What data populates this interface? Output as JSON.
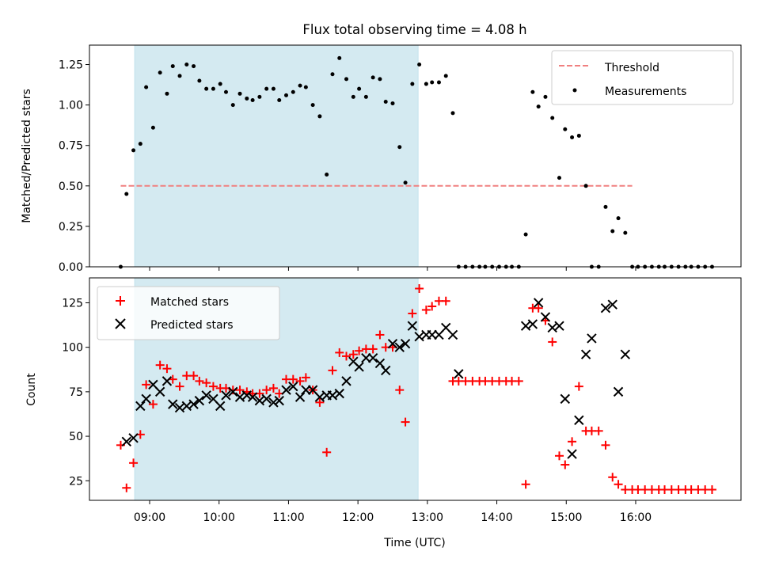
{
  "title": "Flux total observing time = 4.08 h",
  "colors": {
    "observing_span": "#d4eaf1",
    "threshold": "#f08080",
    "measurements": "#000000",
    "matched": "#ff0000",
    "predicted": "#000000"
  },
  "chart_data": [
    {
      "type": "scatter",
      "ylabel": "Matched/Predicted stars",
      "ylim": [
        0,
        1.37
      ],
      "yticks": [
        "0.00",
        "0.25",
        "0.50",
        "0.75",
        "1.00",
        "1.25"
      ],
      "ytick_values": [
        0,
        0.25,
        0.5,
        0.75,
        1.0,
        1.25
      ],
      "legend_position": "top-right",
      "observing_span": [
        "08:47",
        "12:52"
      ],
      "threshold": {
        "name": "Threshold",
        "y": 0.5,
        "x_range": [
          "08:35",
          "15:57"
        ]
      },
      "series": [
        {
          "name": "Measurements",
          "marker": "dot",
          "points": [
            [
              "08:35",
              0.0
            ],
            [
              "08:40",
              0.45
            ],
            [
              "08:46",
              0.72
            ],
            [
              "08:52",
              0.76
            ],
            [
              "08:57",
              1.11
            ],
            [
              "09:03",
              0.86
            ],
            [
              "09:09",
              1.2
            ],
            [
              "09:15",
              1.07
            ],
            [
              "09:20",
              1.24
            ],
            [
              "09:26",
              1.18
            ],
            [
              "09:32",
              1.25
            ],
            [
              "09:38",
              1.24
            ],
            [
              "09:43",
              1.15
            ],
            [
              "09:49",
              1.1
            ],
            [
              "09:55",
              1.1
            ],
            [
              "10:01",
              1.13
            ],
            [
              "10:06",
              1.08
            ],
            [
              "10:12",
              1.0
            ],
            [
              "10:18",
              1.07
            ],
            [
              "10:24",
              1.04
            ],
            [
              "10:29",
              1.03
            ],
            [
              "10:35",
              1.05
            ],
            [
              "10:41",
              1.1
            ],
            [
              "10:47",
              1.1
            ],
            [
              "10:52",
              1.03
            ],
            [
              "10:58",
              1.06
            ],
            [
              "11:04",
              1.08
            ],
            [
              "11:10",
              1.12
            ],
            [
              "11:15",
              1.11
            ],
            [
              "11:21",
              1.0
            ],
            [
              "11:27",
              0.93
            ],
            [
              "11:33",
              0.57
            ],
            [
              "11:38",
              1.19
            ],
            [
              "11:44",
              1.29
            ],
            [
              "11:50",
              1.16
            ],
            [
              "11:56",
              1.05
            ],
            [
              "12:01",
              1.1
            ],
            [
              "12:07",
              1.05
            ],
            [
              "12:13",
              1.17
            ],
            [
              "12:19",
              1.16
            ],
            [
              "12:24",
              1.02
            ],
            [
              "12:30",
              1.01
            ],
            [
              "12:36",
              0.74
            ],
            [
              "12:41",
              0.52
            ],
            [
              "12:47",
              1.13
            ],
            [
              "12:53",
              1.25
            ],
            [
              "12:59",
              1.13
            ],
            [
              "13:04",
              1.14
            ],
            [
              "13:10",
              1.14
            ],
            [
              "13:16",
              1.18
            ],
            [
              "13:22",
              0.95
            ],
            [
              "13:27",
              0.0
            ],
            [
              "13:33",
              0.0
            ],
            [
              "13:39",
              0.0
            ],
            [
              "13:45",
              0.0
            ],
            [
              "13:50",
              0.0
            ],
            [
              "13:56",
              0.0
            ],
            [
              "14:02",
              0.0
            ],
            [
              "14:08",
              0.0
            ],
            [
              "14:13",
              0.0
            ],
            [
              "14:19",
              0.0
            ],
            [
              "14:25",
              0.2
            ],
            [
              "14:31",
              1.08
            ],
            [
              "14:36",
              0.99
            ],
            [
              "14:42",
              1.05
            ],
            [
              "14:48",
              0.92
            ],
            [
              "14:54",
              0.55
            ],
            [
              "14:59",
              0.85
            ],
            [
              "15:05",
              0.8
            ],
            [
              "15:11",
              0.81
            ],
            [
              "15:17",
              0.5
            ],
            [
              "15:22",
              0.0
            ],
            [
              "15:28",
              0.0
            ],
            [
              "15:34",
              0.37
            ],
            [
              "15:40",
              0.22
            ],
            [
              "15:45",
              0.3
            ],
            [
              "15:51",
              0.21
            ],
            [
              "15:57",
              0.0
            ],
            [
              "16:02",
              0.0
            ],
            [
              "16:08",
              0.0
            ],
            [
              "16:14",
              0.0
            ],
            [
              "16:20",
              0.0
            ],
            [
              "16:25",
              0.0
            ],
            [
              "16:31",
              0.0
            ],
            [
              "16:37",
              0.0
            ],
            [
              "16:43",
              0.0
            ],
            [
              "16:48",
              0.0
            ],
            [
              "16:54",
              0.0
            ],
            [
              "17:00",
              0.0
            ],
            [
              "17:06",
              0.0
            ]
          ]
        }
      ]
    },
    {
      "type": "scatter",
      "xlabel": "Time (UTC)",
      "ylabel": "Count",
      "ylim": [
        14,
        139
      ],
      "yticks": [
        "25",
        "50",
        "75",
        "100",
        "125"
      ],
      "ytick_values": [
        25,
        50,
        75,
        100,
        125
      ],
      "legend_position": "top-left",
      "observing_span": [
        "08:47",
        "12:52"
      ],
      "series": [
        {
          "name": "Matched stars",
          "marker": "plus",
          "points": [
            [
              "08:35",
              45
            ],
            [
              "08:40",
              21
            ],
            [
              "08:46",
              35
            ],
            [
              "08:52",
              51
            ],
            [
              "08:57",
              79
            ],
            [
              "09:03",
              68
            ],
            [
              "09:09",
              90
            ],
            [
              "09:15",
              88
            ],
            [
              "09:20",
              82
            ],
            [
              "09:26",
              78
            ],
            [
              "09:32",
              84
            ],
            [
              "09:38",
              84
            ],
            [
              "09:43",
              81
            ],
            [
              "09:49",
              80
            ],
            [
              "09:55",
              78
            ],
            [
              "10:01",
              77
            ],
            [
              "10:06",
              77
            ],
            [
              "10:12",
              76
            ],
            [
              "10:18",
              76
            ],
            [
              "10:24",
              75
            ],
            [
              "10:29",
              74
            ],
            [
              "10:35",
              74
            ],
            [
              "10:41",
              76
            ],
            [
              "10:47",
              77
            ],
            [
              "10:52",
              74
            ],
            [
              "10:58",
              82
            ],
            [
              "11:04",
              82
            ],
            [
              "11:10",
              81
            ],
            [
              "11:15",
              83
            ],
            [
              "11:21",
              76
            ],
            [
              "11:27",
              69
            ],
            [
              "11:33",
              41
            ],
            [
              "11:38",
              87
            ],
            [
              "11:44",
              97
            ],
            [
              "11:50",
              95
            ],
            [
              "11:56",
              96
            ],
            [
              "12:01",
              98
            ],
            [
              "12:07",
              99
            ],
            [
              "12:13",
              99
            ],
            [
              "12:19",
              107
            ],
            [
              "12:24",
              100
            ],
            [
              "12:30",
              100
            ],
            [
              "12:36",
              76
            ],
            [
              "12:41",
              58
            ],
            [
              "12:47",
              119
            ],
            [
              "12:53",
              133
            ],
            [
              "12:59",
              121
            ],
            [
              "13:04",
              123
            ],
            [
              "13:10",
              126
            ],
            [
              "13:16",
              126
            ],
            [
              "13:22",
              81
            ],
            [
              "13:27",
              81
            ],
            [
              "13:33",
              81
            ],
            [
              "13:39",
              81
            ],
            [
              "13:45",
              81
            ],
            [
              "13:50",
              81
            ],
            [
              "13:56",
              81
            ],
            [
              "14:02",
              81
            ],
            [
              "14:08",
              81
            ],
            [
              "14:13",
              81
            ],
            [
              "14:19",
              81
            ],
            [
              "14:25",
              23
            ],
            [
              "14:31",
              122
            ],
            [
              "14:36",
              122
            ],
            [
              "14:42",
              115
            ],
            [
              "14:48",
              103
            ],
            [
              "14:54",
              39
            ],
            [
              "14:59",
              34
            ],
            [
              "15:05",
              47
            ],
            [
              "15:11",
              78
            ],
            [
              "15:17",
              53
            ],
            [
              "15:22",
              53
            ],
            [
              "15:28",
              53
            ],
            [
              "15:34",
              45
            ],
            [
              "15:40",
              27
            ],
            [
              "15:45",
              23
            ],
            [
              "15:51",
              20
            ],
            [
              "15:57",
              20
            ],
            [
              "16:02",
              20
            ],
            [
              "16:08",
              20
            ],
            [
              "16:14",
              20
            ],
            [
              "16:20",
              20
            ],
            [
              "16:25",
              20
            ],
            [
              "16:31",
              20
            ],
            [
              "16:37",
              20
            ],
            [
              "16:43",
              20
            ],
            [
              "16:48",
              20
            ],
            [
              "16:54",
              20
            ],
            [
              "17:00",
              20
            ],
            [
              "17:06",
              20
            ]
          ]
        },
        {
          "name": "Predicted stars",
          "marker": "cross",
          "points": [
            [
              "08:40",
              47
            ],
            [
              "08:46",
              49
            ],
            [
              "08:52",
              67
            ],
            [
              "08:57",
              71
            ],
            [
              "09:03",
              79
            ],
            [
              "09:09",
              75
            ],
            [
              "09:15",
              81
            ],
            [
              "09:20",
              68
            ],
            [
              "09:26",
              66
            ],
            [
              "09:32",
              67
            ],
            [
              "09:38",
              68
            ],
            [
              "09:43",
              70
            ],
            [
              "09:49",
              73
            ],
            [
              "09:55",
              71
            ],
            [
              "10:01",
              67
            ],
            [
              "10:06",
              73
            ],
            [
              "10:12",
              75
            ],
            [
              "10:18",
              72
            ],
            [
              "10:24",
              73
            ],
            [
              "10:29",
              72
            ],
            [
              "10:35",
              70
            ],
            [
              "10:41",
              71
            ],
            [
              "10:47",
              69
            ],
            [
              "10:52",
              70
            ],
            [
              "10:58",
              76
            ],
            [
              "11:04",
              78
            ],
            [
              "11:10",
              72
            ],
            [
              "11:15",
              76
            ],
            [
              "11:21",
              76
            ],
            [
              "11:27",
              72
            ],
            [
              "11:33",
              73
            ],
            [
              "11:38",
              73
            ],
            [
              "11:44",
              74
            ],
            [
              "11:50",
              81
            ],
            [
              "11:56",
              92
            ],
            [
              "12:01",
              89
            ],
            [
              "12:07",
              94
            ],
            [
              "12:13",
              94
            ],
            [
              "12:19",
              91
            ],
            [
              "12:24",
              87
            ],
            [
              "12:30",
              102
            ],
            [
              "12:36",
              100
            ],
            [
              "12:41",
              102
            ],
            [
              "12:47",
              112
            ],
            [
              "12:53",
              106
            ],
            [
              "12:59",
              107
            ],
            [
              "13:04",
              107
            ],
            [
              "13:10",
              107
            ],
            [
              "13:16",
              111
            ],
            [
              "13:22",
              107
            ],
            [
              "13:27",
              85
            ],
            [
              "14:25",
              112
            ],
            [
              "14:31",
              113
            ],
            [
              "14:36",
              125
            ],
            [
              "14:42",
              117
            ],
            [
              "14:48",
              111
            ],
            [
              "14:54",
              112
            ],
            [
              "14:59",
              71
            ],
            [
              "15:05",
              40
            ],
            [
              "15:11",
              59
            ],
            [
              "15:17",
              96
            ],
            [
              "15:22",
              105
            ],
            [
              "15:34",
              122
            ],
            [
              "15:40",
              124
            ],
            [
              "15:45",
              75
            ],
            [
              "15:51",
              96
            ]
          ]
        }
      ]
    }
  ],
  "xaxis": {
    "ticks": [
      "09:00",
      "10:00",
      "11:00",
      "12:00",
      "13:00",
      "14:00",
      "15:00",
      "16:00"
    ]
  }
}
